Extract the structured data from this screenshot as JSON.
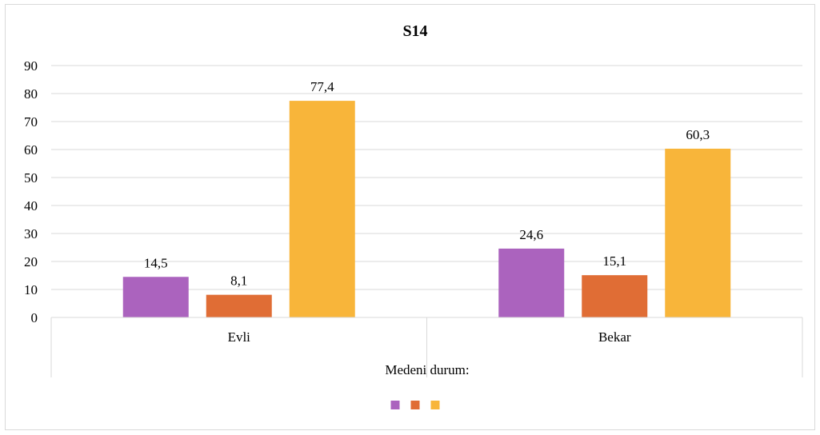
{
  "chart_data": {
    "type": "bar",
    "title": "S14",
    "categories": [
      "Evli",
      "Bekar"
    ],
    "group_label": "Medeni durum:",
    "series": [
      {
        "values": [
          14.5,
          24.6
        ],
        "labels": [
          "14,5",
          "24,6"
        ],
        "color": "#ab63be"
      },
      {
        "values": [
          8.1,
          15.1
        ],
        "labels": [
          "8,1",
          "15,1"
        ],
        "color": "#e06d35"
      },
      {
        "values": [
          77.4,
          60.3
        ],
        "labels": [
          "77,4",
          "60,3"
        ],
        "color": "#f8b53a"
      }
    ],
    "ylim": [
      0,
      90
    ],
    "yticks": [
      0,
      10,
      20,
      30,
      40,
      50,
      60,
      70,
      80,
      90
    ],
    "ytick_labels": [
      "0",
      "10",
      "20",
      "30",
      "40",
      "50",
      "60",
      "70",
      "80",
      "90"
    ],
    "grid": true,
    "legend_position": "bottom"
  }
}
